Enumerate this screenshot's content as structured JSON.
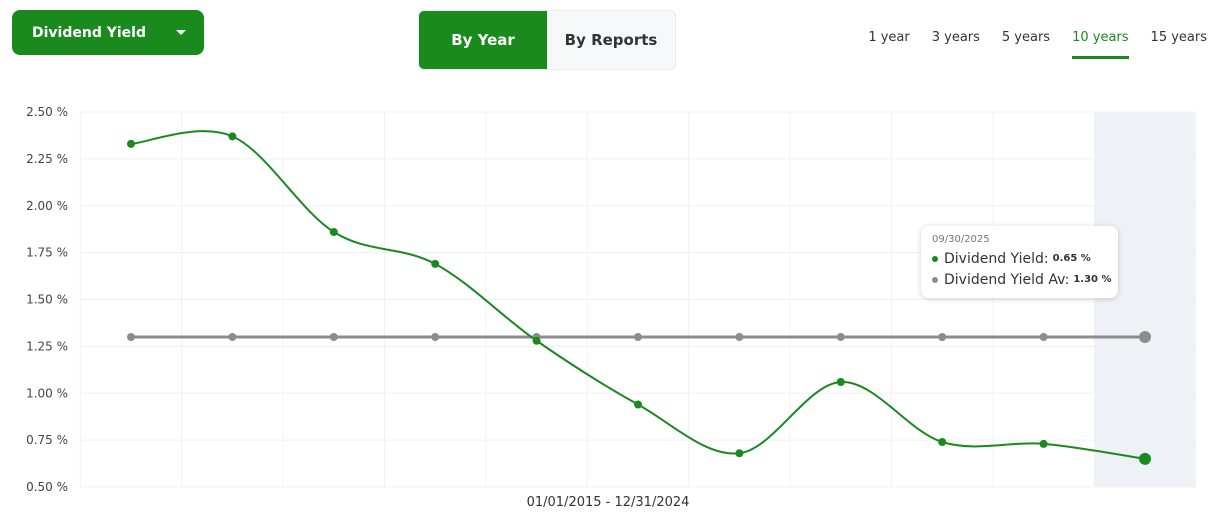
{
  "metric_select": {
    "label": "Dividend Yield"
  },
  "mode_toggle": {
    "options": [
      "By Year",
      "By Reports"
    ],
    "selected": "By Year"
  },
  "range_tabs": {
    "options": [
      "1 year",
      "3 years",
      "5 years",
      "10 years",
      "15 years"
    ],
    "selected": "10 years"
  },
  "colors": {
    "primary": "#1a8a1f",
    "average": "#8c8c8c",
    "highlight": "#eef2f7"
  },
  "chart_data": {
    "type": "line",
    "x_label": "01/01/2015 - 12/31/2024",
    "y_ticks": [
      "2.50 %",
      "2.25 %",
      "2.00 %",
      "1.75 %",
      "1.50 %",
      "1.25 %",
      "1.00 %",
      "0.75 %",
      "0.50 %"
    ],
    "ylim": [
      0.5,
      2.5
    ],
    "grid": true,
    "highlighted_index": 10,
    "series": [
      {
        "key": "yield",
        "values": [
          2.33,
          2.37,
          1.86,
          1.69,
          1.28,
          0.94,
          0.68,
          1.06,
          0.74,
          0.73,
          0.65
        ]
      },
      {
        "key": "average",
        "values": [
          1.3,
          1.3,
          1.3,
          1.3,
          1.3,
          1.3,
          1.3,
          1.3,
          1.3,
          1.3,
          1.3
        ]
      }
    ]
  },
  "tooltip": {
    "date": "09/30/2025",
    "rows": [
      {
        "label": "Dividend Yield:",
        "value": "0.65 %"
      },
      {
        "label": "Dividend Yield Av:",
        "value": "1.30 %"
      }
    ]
  }
}
